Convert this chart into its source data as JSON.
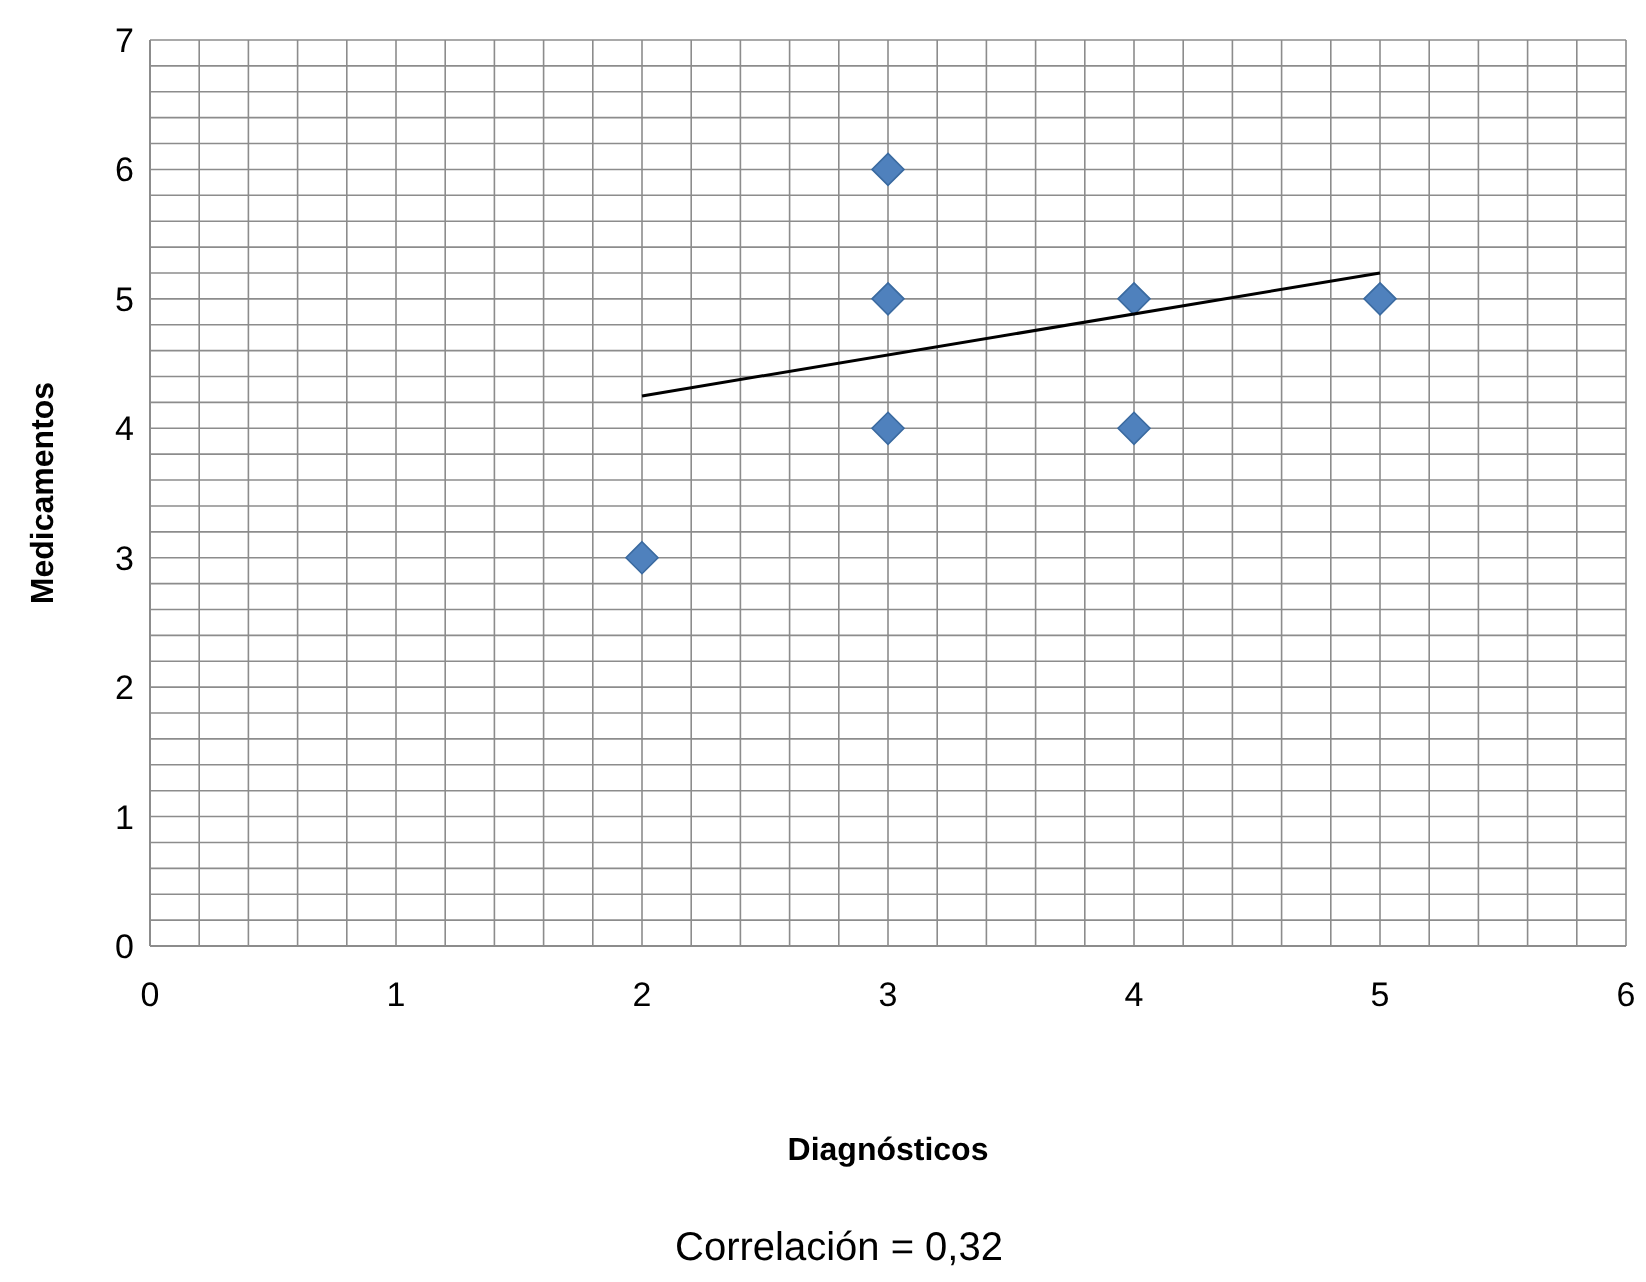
{
  "chart_data": {
    "type": "scatter",
    "xlabel": "Diagnósticos",
    "ylabel": "Medicamentos",
    "annotations": [
      "Correlación = 0,32"
    ],
    "series": [
      {
        "type": "scatter",
        "color": "#4f81bd",
        "marker": "diamond",
        "x": [
          2,
          3,
          3,
          3,
          4,
          4,
          5
        ],
        "values": [
          3,
          6,
          5,
          4,
          5,
          4,
          5
        ]
      },
      {
        "type": "line",
        "color": "#000000",
        "marker": "none",
        "x": [
          2,
          5
        ],
        "values": [
          4.25,
          5.2
        ]
      }
    ],
    "xlim": [
      0,
      6
    ],
    "ylim": [
      0,
      7
    ],
    "xticks": [
      0,
      {
        "value": 0.2,
        "label": null
      },
      {
        "value": 0.4,
        "label": null
      },
      {
        "value": 0.6,
        "label": null
      },
      {
        "value": 0.8,
        "label": null
      },
      1,
      {
        "value": 1.2,
        "label": null
      },
      {
        "value": 1.4,
        "label": null
      },
      {
        "value": 1.6,
        "label": null
      },
      {
        "value": 1.8,
        "label": null
      },
      2,
      {
        "value": 2.2,
        "label": null
      },
      {
        "value": 2.4,
        "label": null
      },
      {
        "value": 2.6,
        "label": null
      },
      {
        "value": 2.8,
        "label": null
      },
      3,
      {
        "value": 3.2,
        "label": null
      },
      {
        "value": 3.4,
        "label": null
      },
      {
        "value": 3.6,
        "label": null
      },
      {
        "value": 3.8,
        "label": null
      },
      4,
      {
        "value": 4.2,
        "label": null
      },
      {
        "value": 4.4,
        "label": null
      },
      {
        "value": 4.6,
        "label": null
      },
      {
        "value": 4.8,
        "label": null
      },
      5,
      {
        "value": 5.2,
        "label": null
      },
      {
        "value": 5.4,
        "label": null
      },
      {
        "value": 5.6,
        "label": null
      },
      {
        "value": 5.8,
        "label": null
      },
      6
    ],
    "yticks": [
      0,
      {
        "value": 0.2,
        "label": null
      },
      {
        "value": 0.4,
        "label": null
      },
      {
        "value": 0.6,
        "label": null
      },
      {
        "value": 0.8,
        "label": null
      },
      1,
      {
        "value": 1.2,
        "label": null
      },
      {
        "value": 1.4,
        "label": null
      },
      {
        "value": 1.6,
        "label": null
      },
      {
        "value": 1.8,
        "label": null
      },
      2,
      {
        "value": 2.2,
        "label": null
      },
      {
        "value": 2.4,
        "label": null
      },
      {
        "value": 2.6,
        "label": null
      },
      {
        "value": 2.8,
        "label": null
      },
      3,
      {
        "value": 3.2,
        "label": null
      },
      {
        "value": 3.4,
        "label": null
      },
      {
        "value": 3.6,
        "label": null
      },
      {
        "value": 3.8,
        "label": null
      },
      4,
      {
        "value": 4.2,
        "label": null
      },
      {
        "value": 4.4,
        "label": null
      },
      {
        "value": 4.6,
        "label": null
      },
      {
        "value": 4.8,
        "label": null
      },
      5,
      {
        "value": 5.2,
        "label": null
      },
      {
        "value": 5.4,
        "label": null
      },
      {
        "value": 5.6,
        "label": null
      },
      {
        "value": 5.8,
        "label": null
      },
      6,
      {
        "value": 6.2,
        "label": null
      },
      {
        "value": 6.4,
        "label": null
      },
      {
        "value": 6.6,
        "label": null
      },
      {
        "value": 6.8,
        "label": null
      },
      7
    ],
    "grid": true,
    "legend": false
  }
}
